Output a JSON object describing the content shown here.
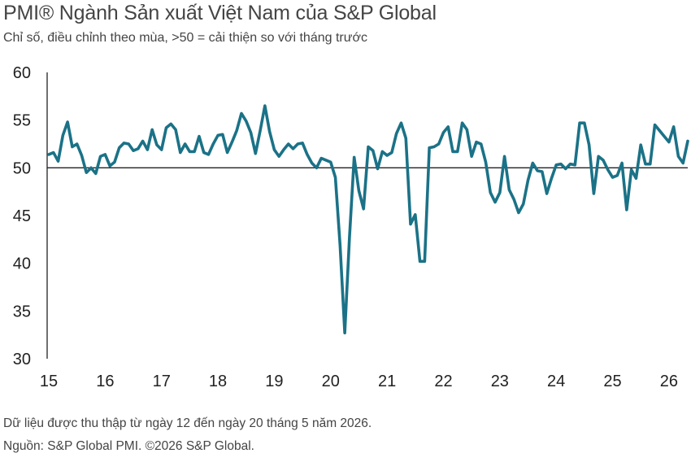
{
  "title": "PMI® Ngành Sản xuất Việt Nam của S&P Global",
  "subtitle": "Chỉ số, điều chỉnh theo mùa, >50 = cải thiện so với tháng trước",
  "footnote_1": "Dữ liệu được thu thập từ ngày 12 đến ngày 20 tháng 5 năm 2026.",
  "footnote_2": "Nguồn: S&P Global PMI. ©2026 S&P Global.",
  "colors": {
    "line": "#1b7287",
    "axis": "#222222",
    "reference": "#222222"
  },
  "chart_data": {
    "type": "line",
    "title": "PMI® Ngành Sản xuất Việt Nam của S&P Global",
    "ylabel": "",
    "xlabel": "",
    "ylim": [
      30,
      60
    ],
    "yticks": [
      30,
      35,
      40,
      45,
      50,
      55,
      60
    ],
    "x_tick_labels": [
      "15",
      "16",
      "17",
      "18",
      "19",
      "20",
      "21",
      "22",
      "23",
      "24",
      "25",
      "26"
    ],
    "x_start": "2015-01",
    "x_end": "2026-05",
    "reference_line": 50,
    "grid": false,
    "series": [
      {
        "values": [
          51.4,
          51.6,
          50.7,
          53.4,
          54.8,
          52.2,
          52.5,
          51.3,
          49.5,
          50.0,
          49.4,
          51.2,
          51.4,
          50.2,
          50.6,
          52.1,
          52.6,
          52.5,
          51.8,
          52.0,
          52.8,
          51.9,
          54.0,
          52.4,
          51.9,
          54.2,
          54.6,
          54.0,
          51.6,
          52.5,
          51.7,
          51.7,
          53.3,
          51.6,
          51.4,
          52.5,
          53.4,
          53.5,
          51.6,
          52.7,
          53.9,
          55.7,
          54.9,
          53.7,
          51.5,
          53.9,
          56.5,
          53.8,
          51.9,
          51.2,
          51.9,
          52.5,
          52.0,
          52.5,
          52.6,
          51.4,
          50.5,
          50.0,
          51.0,
          50.8,
          50.6,
          49.0,
          41.9,
          32.7,
          42.7,
          51.1,
          47.6,
          45.7,
          52.2,
          51.8,
          49.9,
          51.7,
          51.3,
          51.6,
          53.6,
          54.7,
          53.1,
          44.1,
          45.1,
          40.2,
          40.2,
          52.1,
          52.2,
          52.5,
          53.7,
          54.3,
          51.7,
          51.7,
          54.7,
          54.0,
          51.2,
          52.7,
          52.5,
          50.6,
          47.4,
          46.4,
          47.4,
          51.2,
          47.7,
          46.7,
          45.3,
          46.2,
          48.7,
          50.5,
          49.7,
          49.6,
          47.3,
          48.9,
          50.3,
          50.4,
          49.9,
          50.4,
          50.3,
          54.7,
          54.7,
          52.4,
          47.3,
          51.2,
          50.8,
          49.8,
          49.0,
          49.2,
          50.5,
          45.6,
          49.8,
          48.9,
          52.4,
          50.4,
          50.4,
          54.5,
          53.9,
          53.3,
          52.7,
          54.3,
          51.2,
          50.5,
          52.8
        ]
      }
    ]
  }
}
